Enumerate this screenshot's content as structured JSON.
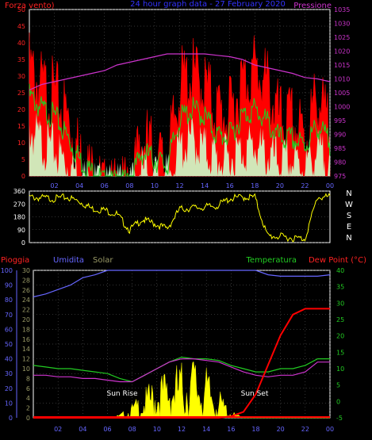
{
  "header": {
    "wind_label": "Forza vento)",
    "title": "24 hour graph data - 27 February 2020",
    "pressure_label": "Pressione"
  },
  "colors": {
    "wind_gust": "#ff0000",
    "wind_avg": "#22cc22",
    "wind_light": "#ccffcc",
    "pressure": "#cc33cc",
    "direction": "#ffff00",
    "rain": "#ff0000",
    "humidity": "#6666ff",
    "solar": "#ffff00",
    "temperature": "#22cc22",
    "dewpoint": "#cc33cc",
    "axis_red": "#ff2222",
    "axis_blue": "#6666ff",
    "axis_olive": "#999966",
    "axis_green": "#22cc22",
    "axis_magenta": "#cc33cc",
    "axis_white": "#ffffff",
    "grid": "#666666"
  },
  "bottom_labels": {
    "rain": "Pioggia",
    "humidity": "Umidita",
    "solar": "Solar",
    "temperature": "Temperatura",
    "dewpoint": "Dew Point (°C)",
    "sunrise": "Sun Rise",
    "sunset": "Sun Set"
  },
  "compass": [
    "N",
    "W",
    "S",
    "E",
    "N"
  ],
  "chart_data": [
    {
      "type": "area",
      "panel": "wind_pressure",
      "x_ticks": [
        "02",
        "04",
        "06",
        "08",
        "10",
        "12",
        "14",
        "16",
        "18",
        "20",
        "22",
        "00"
      ],
      "x": [
        0,
        1,
        2,
        3,
        4,
        5,
        6,
        7,
        8,
        9,
        10,
        11,
        12,
        13,
        14,
        15,
        16,
        17,
        18,
        19,
        20,
        21,
        22,
        23,
        24
      ],
      "ylim": [
        0,
        50
      ],
      "yticks": [
        0,
        5,
        10,
        15,
        20,
        25,
        30,
        35,
        40,
        45,
        50
      ],
      "y2lim": [
        975,
        1035
      ],
      "y2ticks": [
        975,
        980,
        985,
        990,
        995,
        1000,
        1005,
        1010,
        1015,
        1020,
        1025,
        1030,
        1035
      ],
      "series": [
        {
          "name": "Forza vento",
          "key": "gust",
          "values": [
            38,
            32,
            30,
            24,
            12,
            6,
            0,
            0,
            0,
            17,
            12,
            8,
            33,
            36,
            33,
            25,
            24,
            34,
            38,
            33,
            22,
            22,
            17,
            30,
            18
          ]
        },
        {
          "key": "average",
          "values": [
            26,
            22,
            20,
            14,
            7,
            3,
            0,
            0,
            0,
            9,
            7,
            5,
            19,
            22,
            20,
            14,
            14,
            20,
            22,
            18,
            13,
            13,
            11,
            17,
            12
          ]
        },
        {
          "key": "light",
          "values": [
            18,
            14,
            12,
            8,
            4,
            2,
            0,
            0,
            0,
            6,
            4,
            3,
            12,
            15,
            12,
            9,
            9,
            12,
            13,
            10,
            8,
            8,
            7,
            11,
            8
          ]
        },
        {
          "name": "Pressione",
          "key": "pressure",
          "values": [
            1006,
            1008,
            1009,
            1010,
            1011,
            1012,
            1013,
            1015,
            1016,
            1017,
            1018,
            1019,
            1019,
            1019,
            1019,
            1018.5,
            1018,
            1017,
            1015,
            1014,
            1013,
            1012,
            1010.5,
            1010,
            1009
          ]
        }
      ]
    },
    {
      "type": "line",
      "panel": "wind_direction",
      "ylim": [
        0,
        360
      ],
      "yticks": [
        0,
        90,
        180,
        270,
        360
      ],
      "x": [
        0,
        1,
        2,
        3,
        4,
        5,
        6,
        7,
        8,
        9,
        10,
        11,
        12,
        13,
        14,
        15,
        16,
        17,
        18,
        19,
        20,
        21,
        22,
        23,
        24
      ],
      "series": [
        {
          "key": "direction",
          "values": [
            330,
            325,
            320,
            330,
            300,
            250,
            240,
            210,
            100,
            175,
            145,
            110,
            245,
            255,
            260,
            270,
            320,
            330,
            330,
            60,
            55,
            45,
            40,
            330,
            330
          ]
        }
      ]
    },
    {
      "type": "line",
      "panel": "rain_humidity_temp",
      "ylim": [
        0,
        100
      ],
      "yticks": [
        0,
        10,
        20,
        30,
        40,
        50,
        60,
        70,
        80,
        90,
        100
      ],
      "y_solar_ticks": [
        0,
        2,
        4,
        6,
        8,
        10,
        12,
        14,
        16,
        18,
        20,
        22,
        24,
        26,
        28,
        30
      ],
      "y2lim": [
        -5,
        40
      ],
      "y2ticks": [
        -5,
        0,
        5,
        10,
        15,
        20,
        25,
        30,
        35,
        40
      ],
      "x": [
        0,
        1,
        2,
        3,
        4,
        5,
        6,
        7,
        8,
        9,
        10,
        11,
        12,
        13,
        14,
        15,
        16,
        17,
        18,
        19,
        20,
        21,
        22,
        23,
        24
      ],
      "series": [
        {
          "name": "Pioggia",
          "key": "rain",
          "values": [
            0,
            0,
            0,
            0,
            0,
            0,
            0,
            0,
            0,
            0,
            0,
            0,
            0,
            0,
            0,
            0,
            1,
            4,
            16,
            36,
            56,
            70,
            74,
            74,
            74
          ]
        },
        {
          "name": "Umidita",
          "key": "humidity",
          "values": [
            82,
            84,
            87,
            90,
            95,
            97,
            100,
            100,
            100,
            100,
            100,
            100,
            100,
            100,
            100,
            100,
            100,
            100,
            100,
            97,
            96,
            96,
            96,
            96,
            97
          ]
        },
        {
          "name": "Solar",
          "key": "solar",
          "values": [
            0,
            0,
            0,
            0,
            0,
            0,
            0,
            0.5,
            2,
            4,
            6,
            7,
            8,
            9,
            7,
            4,
            1,
            0,
            0,
            0,
            0,
            0,
            0,
            0,
            0
          ]
        },
        {
          "name": "Temperatura",
          "key": "temperature",
          "values": [
            11,
            10.5,
            10,
            10,
            9.5,
            9,
            8.5,
            7,
            6,
            8,
            10,
            12,
            13.5,
            13,
            13,
            12.5,
            11,
            10,
            9,
            9,
            10,
            10,
            11,
            13,
            13
          ]
        },
        {
          "name": "Dew Point (°C)",
          "key": "dewpoint",
          "values": [
            8,
            8,
            7.5,
            7.5,
            7,
            7,
            6.5,
            6,
            6,
            8,
            10,
            12,
            13,
            13,
            12.5,
            12,
            10.5,
            9,
            8,
            7.5,
            8,
            8,
            9,
            12,
            12
          ]
        }
      ]
    }
  ]
}
